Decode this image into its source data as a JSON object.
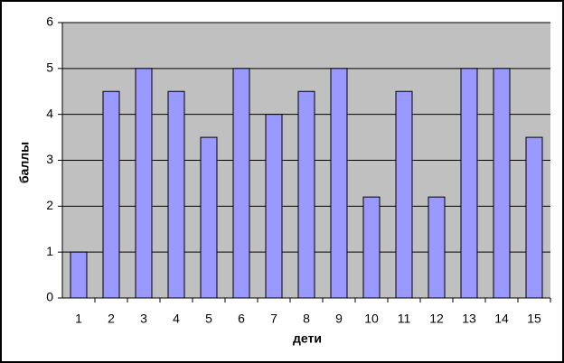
{
  "chart_data": {
    "type": "bar",
    "xlabel": "дети",
    "ylabel": "баллы",
    "categories": [
      "1",
      "2",
      "3",
      "4",
      "5",
      "6",
      "7",
      "8",
      "9",
      "10",
      "11",
      "12",
      "13",
      "14",
      "15"
    ],
    "values": [
      1,
      4.5,
      5,
      4.5,
      3.5,
      5,
      4,
      4.5,
      5,
      2.2,
      4.5,
      2.2,
      5,
      5,
      3.5
    ],
    "color": "#9999ff",
    "ylim": [
      0,
      6
    ],
    "yticks": [
      0,
      1,
      2,
      3,
      4,
      5,
      6
    ],
    "grid": true
  }
}
